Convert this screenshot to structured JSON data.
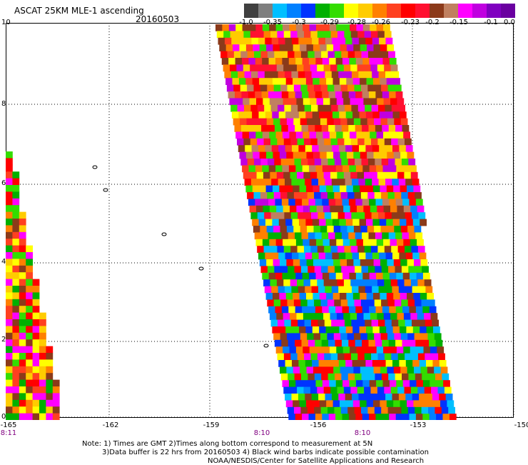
{
  "title": "ASCAT 25KM MLE-1 ascending",
  "date": "20160503",
  "colorbar": {
    "labels": [
      "-1.0",
      "-0.35",
      "-0.3",
      "-0.29",
      "-0.28",
      "-0.26",
      "-0.23",
      "-0.2",
      "-0.15",
      "-0.1",
      "0.0"
    ],
    "colors": [
      "#404040",
      "#7f7f7f",
      "#00bfff",
      "#0080ff",
      "#0033ff",
      "#00b000",
      "#33dd00",
      "#ffff00",
      "#ffcc00",
      "#ff8000",
      "#ff4020",
      "#ff0000",
      "#ff1030",
      "#8b3a1a",
      "#c08060",
      "#ff00ff",
      "#c000e0",
      "#8000c0",
      "#6a00a0"
    ]
  },
  "lat_labels": [
    "10",
    "8",
    "6",
    "4",
    "2",
    "0"
  ],
  "lon_labels": [
    "-165",
    "-162",
    "-159",
    "-156",
    "-153",
    "-150"
  ],
  "time_labels": [
    "8:11",
    "8:10",
    "8:10"
  ],
  "notes": [
    "Note: 1) Times are GMT 2)Times along bottom correspond to measurement at 5N",
    "3)Data buffer is 22 hrs from 20160503 4) Black wind barbs indicate possible contamination",
    "NOAA/NESDIS/Center for Satellite Applications and Research"
  ],
  "palette": {
    "swath_north": [
      "#ff0000",
      "#ff1030",
      "#ff4020",
      "#ff8000",
      "#ffcc00",
      "#ff00ff",
      "#c000e0",
      "#8b3a1a",
      "#c08060",
      "#33dd00",
      "#ffff00"
    ],
    "swath_south": [
      "#0080ff",
      "#0033ff",
      "#00bfff",
      "#33dd00",
      "#00b000",
      "#ffff00",
      "#ff8000",
      "#ff0000",
      "#ff00ff",
      "#8b3a1a"
    ],
    "left_swath": [
      "#ff0000",
      "#ff8000",
      "#ffff00",
      "#33dd00",
      "#ff00ff",
      "#8b3a1a",
      "#ffcc00",
      "#00b000",
      "#ff4020"
    ]
  }
}
